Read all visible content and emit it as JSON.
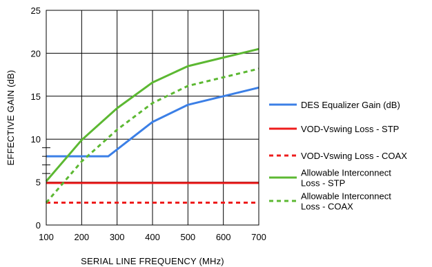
{
  "chart_data": {
    "type": "line",
    "title": "",
    "xlabel": "SERIAL LINE FREQUENCY (MHz)",
    "ylabel": "EFFECTIVE GAIN (dB)",
    "xlim": [
      100,
      700
    ],
    "ylim": [
      0,
      25
    ],
    "x_ticks": [
      "100",
      "200",
      "300",
      "400",
      "500",
      "600",
      "700"
    ],
    "y_ticks": [
      "0",
      "5",
      "10",
      "15",
      "20",
      "25"
    ],
    "grid": true,
    "legend_position": "right",
    "series": [
      {
        "name": "DES Equalizer Gain (dB)",
        "color": "#3b7fe6",
        "dash": "solid",
        "points": [
          [
            100,
            8
          ],
          [
            275,
            8
          ],
          [
            400,
            12
          ],
          [
            500,
            14
          ],
          [
            600,
            15
          ],
          [
            700,
            16
          ]
        ]
      },
      {
        "name": "VOD-Vswing Loss - STP",
        "color": "#ee1c1c",
        "dash": "solid",
        "points": [
          [
            100,
            4.9
          ],
          [
            700,
            4.9
          ]
        ]
      },
      {
        "name": "VOD-Vswing Loss - COAX",
        "color": "#ee1c1c",
        "dash": "dashed",
        "points": [
          [
            100,
            2.6
          ],
          [
            700,
            2.6
          ]
        ]
      },
      {
        "name": "Allowable Interconnect Loss - STP",
        "legend_lines": [
          "Allowable Interconnect",
          "Loss - STP"
        ],
        "color": "#5cb832",
        "dash": "solid",
        "points": [
          [
            100,
            5.1
          ],
          [
            200,
            9.9
          ],
          [
            300,
            13.6
          ],
          [
            400,
            16.6
          ],
          [
            500,
            18.5
          ],
          [
            600,
            19.5
          ],
          [
            700,
            20.5
          ]
        ]
      },
      {
        "name": "Allowable Interconnect Loss - COAX",
        "legend_lines": [
          "Allowable Interconnect",
          "Loss - COAX"
        ],
        "color": "#5cb832",
        "dash": "dashed",
        "points": [
          [
            100,
            2.6
          ],
          [
            200,
            7.4
          ],
          [
            300,
            11.1
          ],
          [
            400,
            14.2
          ],
          [
            500,
            16.2
          ],
          [
            600,
            17.2
          ],
          [
            700,
            18.2
          ]
        ]
      }
    ]
  }
}
